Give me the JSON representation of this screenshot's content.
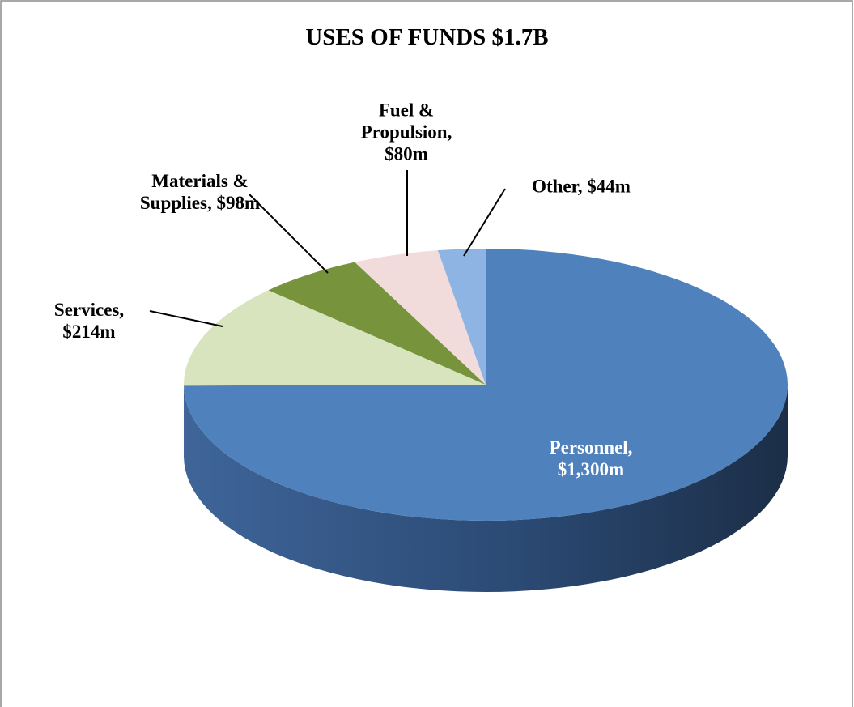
{
  "chart_data": {
    "type": "pie3d",
    "title": "USES OF FUNDS $1.7B",
    "values": [
      1300,
      214,
      98,
      80,
      44
    ],
    "value_labels": [
      "Personnel, $1,300m",
      "Services, $214m",
      "Materials & Supplies, $98m",
      "Fuel & Propulsion, $80m",
      "Other, $44m"
    ],
    "colors": [
      "#4f81bd",
      "#d7e4bd",
      "#77933c",
      "#f2dcdb",
      "#8eb4e3"
    ]
  }
}
